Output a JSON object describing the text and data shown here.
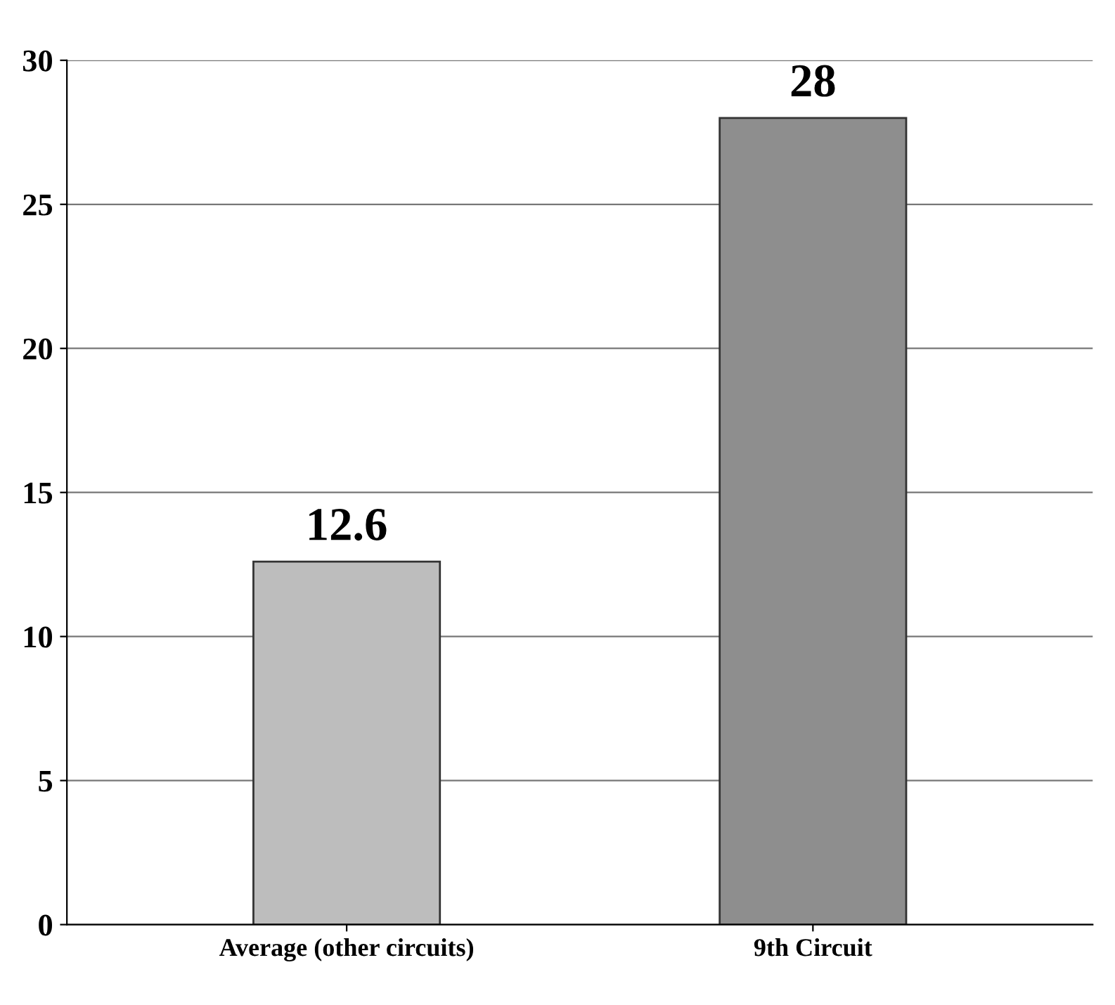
{
  "chart_data": {
    "type": "bar",
    "categories": [
      "Average (other circuits)",
      "9th Circuit"
    ],
    "values": [
      12.6,
      28
    ],
    "colors": [
      "#bdbdbd",
      "#8e8e8e"
    ],
    "ylim": [
      0,
      30
    ],
    "yticks": [
      0,
      5,
      10,
      15,
      20,
      25,
      30
    ],
    "grid": "y",
    "data_labels": true
  }
}
